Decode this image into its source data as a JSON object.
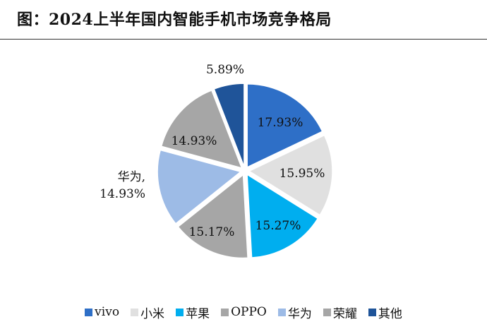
{
  "title": "图：2024上半年国内智能手机市场竞争格局",
  "chart_data": {
    "type": "pie",
    "title": "",
    "slices": [
      {
        "name": "vivo",
        "value": 17.93,
        "label": "17.93%",
        "color": "#2e6fc7"
      },
      {
        "name": "小米",
        "value": 15.95,
        "label": "15.95%",
        "color": "#e0e0e0"
      },
      {
        "name": "苹果",
        "value": 15.27,
        "label": "15.27%",
        "color": "#00aeef"
      },
      {
        "name": "OPPO",
        "value": 15.17,
        "label": "15.17%",
        "color": "#a6a6a6"
      },
      {
        "name": "华为",
        "value": 14.93,
        "label": "华为,|14.93%",
        "color": "#9dbbe6"
      },
      {
        "name": "荣耀",
        "value": 14.93,
        "label": "14.93%",
        "color": "#a6a6a6"
      },
      {
        "name": "其他",
        "value": 5.89,
        "label": "5.89%",
        "color": "#1f5499"
      }
    ],
    "legend_position": "bottom",
    "exploded": true
  }
}
